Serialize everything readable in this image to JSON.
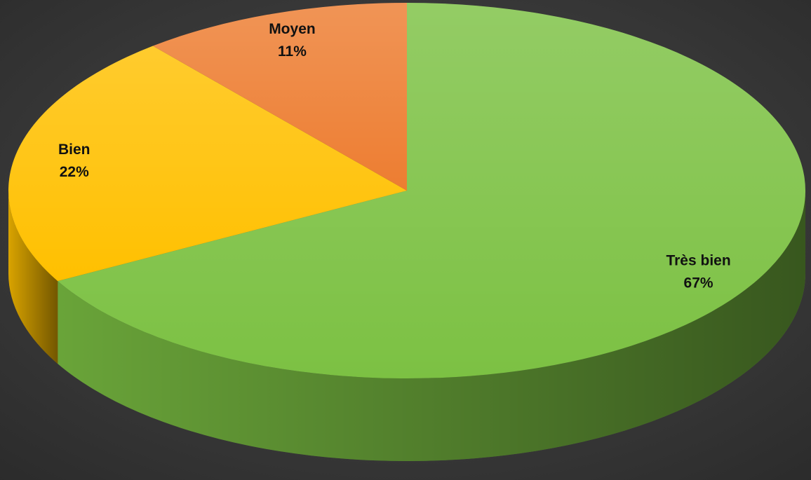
{
  "chart_data": {
    "type": "pie",
    "categories": [
      "Très bien",
      "Bien",
      "Moyen"
    ],
    "values": [
      67,
      22,
      11
    ],
    "value_labels": [
      "67%",
      "22%",
      "11%"
    ],
    "colors": [
      "#7cc143",
      "#ffc000",
      "#ed7d31"
    ]
  }
}
